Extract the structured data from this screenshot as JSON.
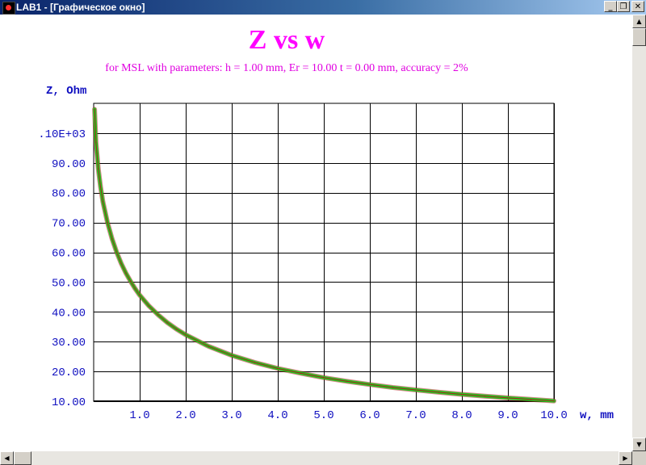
{
  "window": {
    "title": "LAB1 - [Графическое окно]",
    "minimize_glyph": "_",
    "maximize_glyph": "❐",
    "close_glyph": "✕"
  },
  "scrollbars": {
    "up_glyph": "▲",
    "down_glyph": "▼",
    "left_glyph": "◀",
    "right_glyph": "▶"
  },
  "chart_data": {
    "type": "line",
    "title": "Z vs w",
    "subtitle": "for MSL with parameters: h =  1.00 mm, Er = 10.00 t =  0.00 mm, accuracy = 2%",
    "xlabel": "w, mm",
    "ylabel": "Z, Ohm",
    "xlim": [
      0,
      10
    ],
    "ylim": [
      10,
      110
    ],
    "grid": true,
    "x_ticks": [
      1,
      2,
      3,
      4,
      5,
      6,
      7,
      8,
      9,
      10
    ],
    "x_tick_labels": [
      "1.0",
      "2.0",
      "3.0",
      "4.0",
      "5.0",
      "6.0",
      "7.0",
      "8.0",
      "9.0",
      "10.0"
    ],
    "y_ticks": [
      10,
      20,
      30,
      40,
      50,
      60,
      70,
      80,
      90,
      100
    ],
    "y_tick_labels": [
      "10.00",
      "20.00",
      "30.00",
      "40.00",
      "50.00",
      "60.00",
      "70.00",
      "80.00",
      "90.00",
      ".10E+03"
    ],
    "series_color": "#1ec81e",
    "series_outline_color": "#b02020",
    "series": [
      {
        "x": [
          0.02,
          0.05,
          0.1,
          0.15,
          0.2,
          0.3,
          0.4,
          0.5,
          0.6,
          0.7,
          0.8,
          0.9,
          1.0,
          1.2,
          1.4,
          1.6,
          1.8,
          2.0,
          2.5,
          3.0,
          3.5,
          4.0,
          4.5,
          5.0,
          5.5,
          6.0,
          6.5,
          7.0,
          7.5,
          8.0,
          8.5,
          9.0,
          9.5,
          10.0
        ],
        "y": [
          108,
          97,
          88,
          82,
          77,
          70,
          64.5,
          60,
          56.2,
          53,
          50.3,
          47.8,
          45.6,
          42,
          39,
          36.4,
          34.2,
          32.3,
          28.4,
          25.4,
          23,
          21,
          19.4,
          17.9,
          16.7,
          15.6,
          14.6,
          13.8,
          13,
          12.3,
          11.7,
          11.1,
          10.6,
          10.1
        ]
      }
    ]
  }
}
